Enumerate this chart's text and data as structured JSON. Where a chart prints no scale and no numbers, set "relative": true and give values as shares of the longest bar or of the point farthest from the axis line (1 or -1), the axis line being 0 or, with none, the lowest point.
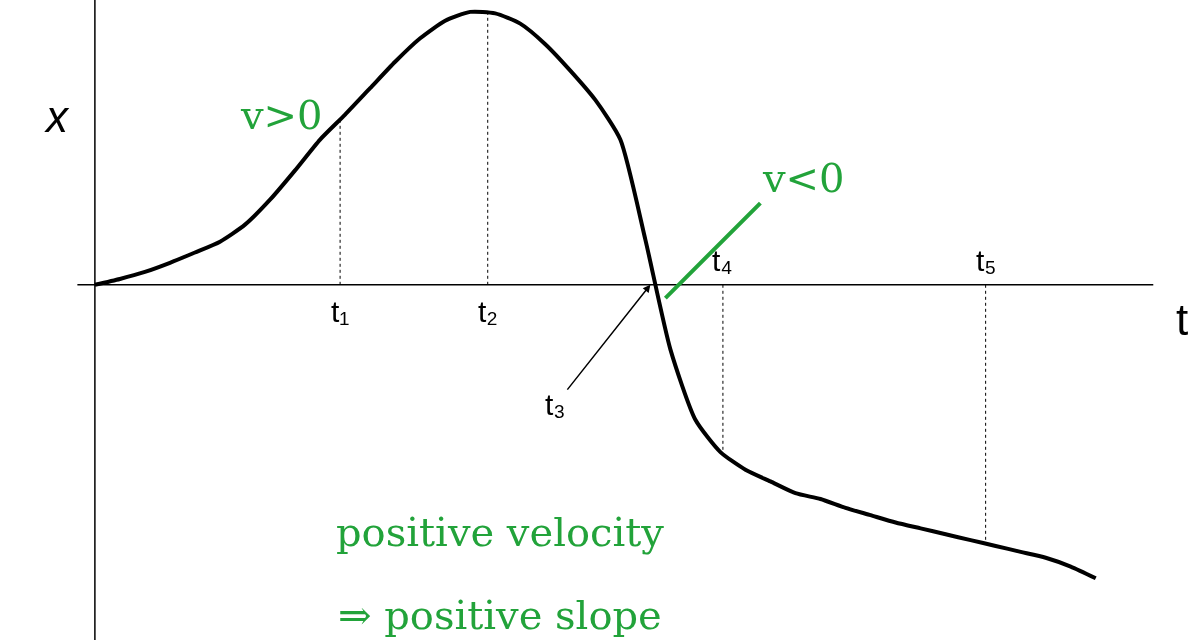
{
  "chart_data": {
    "type": "line",
    "relative": true,
    "xlabel": "t",
    "ylabel": "x",
    "categories": [
      null,
      null,
      null,
      null,
      null,
      null,
      null,
      null,
      null,
      null,
      null,
      null,
      null,
      null,
      null,
      null,
      null,
      null,
      null,
      null,
      null,
      null,
      null,
      null,
      null,
      null,
      null,
      null,
      null,
      null,
      null,
      null,
      null,
      null,
      null,
      null,
      null,
      null,
      null,
      null,
      null
    ],
    "series": [
      {
        "color": "#000000",
        "values": [
          0,
          0.02,
          0.044,
          0.075,
          0.11,
          0.147,
          0.205,
          0.29,
          0.39,
          0.495,
          0.58,
          0.67,
          0.76,
          0.84,
          0.9,
          0.93,
          0.925,
          0.89,
          0.82,
          0.73,
          0.63,
          0.495,
          0.154,
          -0.22,
          -0.46,
          -0.57,
          -0.63,
          -0.67,
          -0.71,
          -0.73,
          -0.76,
          -0.785,
          -0.81,
          -0.83,
          -0.85,
          -0.87,
          -0.89,
          -0.91,
          -0.93,
          -0.96,
          -1
        ]
      }
    ],
    "annotations": [
      "t₁",
      "t₂",
      "t₃",
      "t₄",
      "t₅",
      "v>0",
      "v<0",
      "positive velocity",
      "⇒ positive slope"
    ],
    "line_style": "solid"
  }
}
